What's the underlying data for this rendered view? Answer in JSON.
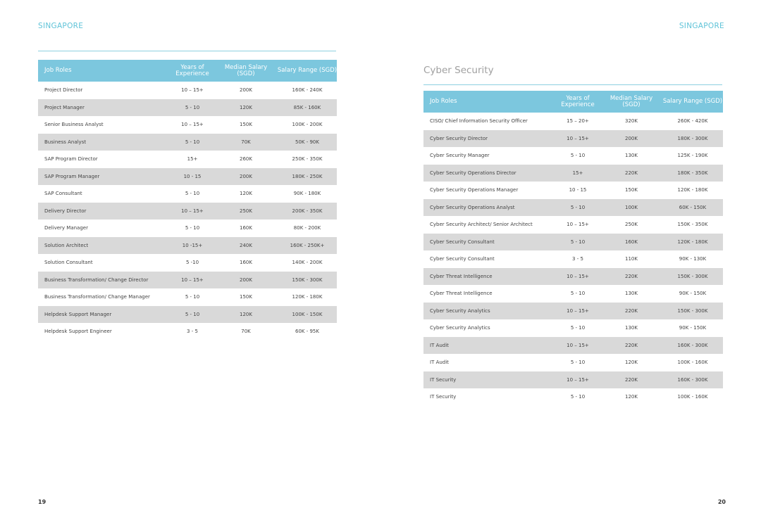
{
  "left_page": {
    "header": "SINGAPORE",
    "page_number": "19",
    "table": {
      "columns": [
        "Job Roles",
        "Years of Experience",
        "Median Salary (SGD)",
        "Salary Range (SGD)"
      ],
      "rows": [
        [
          "Project Director",
          "10 – 15+",
          "200K",
          "160K - 240K"
        ],
        [
          "Project Manager",
          "5 - 10",
          "120K",
          "85K - 160K"
        ],
        [
          "Senior Business Analyst",
          "10 – 15+",
          "150K",
          "100K - 200K"
        ],
        [
          "Business Analyst",
          "5 - 10",
          "70K",
          "50K - 90K"
        ],
        [
          "SAP Program Director",
          "15+",
          "260K",
          "250K - 350K"
        ],
        [
          "SAP Program Manager",
          "10 - 15",
          "200K",
          "180K - 250K"
        ],
        [
          "SAP Consultant",
          "5 - 10",
          "120K",
          "90K - 180K"
        ],
        [
          "Delivery Director",
          "10 – 15+",
          "250K",
          "200K - 350K"
        ],
        [
          "Delivery Manager",
          "5 - 10",
          "160K",
          "80K - 200K"
        ],
        [
          "Solution Architect",
          "10 -15+",
          "240K",
          "160K - 250K+"
        ],
        [
          "Solution Consultant",
          "5 -10",
          "160K",
          "140K - 200K"
        ],
        [
          "Business Transformation/ Change Director",
          "10 – 15+",
          "200K",
          "150K - 300K"
        ],
        [
          "Business Transformation/ Change Manager",
          "5 - 10",
          "150K",
          "120K - 180K"
        ],
        [
          "Helpdesk Support Manager",
          "5 - 10",
          "120K",
          "100K - 150K"
        ],
        [
          "Helpdesk Support Engineer",
          "3 - 5",
          "70K",
          "60K - 95K"
        ]
      ]
    }
  },
  "right_page": {
    "header": "SINGAPORE",
    "title": "Cyber Security",
    "page_number": "20",
    "table": {
      "columns": [
        "Job Roles",
        "Years of Experience",
        "Median Salary (SGD)",
        "Salary Range (SGD)"
      ],
      "rows": [
        [
          "CISO/ Chief Information Security Officer",
          "15 – 20+",
          "320K",
          "260K - 420K"
        ],
        [
          "Cyber Security Director",
          "10 – 15+",
          "200K",
          "180K - 300K"
        ],
        [
          "Cyber Security Manager",
          "5 - 10",
          "130K",
          "125K - 190K"
        ],
        [
          "Cyber Security Operations Director",
          "15+",
          "220K",
          "180K - 350K"
        ],
        [
          "Cyber Security Operations Manager",
          "10 - 15",
          "150K",
          "120K - 180K"
        ],
        [
          "Cyber Security Operations Analyst",
          "5 - 10",
          "100K",
          "60K - 150K"
        ],
        [
          "Cyber Security Architect/ Senior Architect",
          "10 – 15+",
          "250K",
          "150K - 350K"
        ],
        [
          "Cyber Security Consultant",
          "5 - 10",
          "160K",
          "120K - 180K"
        ],
        [
          "Cyber Security Consultant",
          "3 - 5",
          "110K",
          "90K - 130K"
        ],
        [
          "Cyber Threat Intelligence",
          "10 – 15+",
          "220K",
          "150K - 300K"
        ],
        [
          "Cyber Threat Intelligence",
          "5 - 10",
          "130K",
          "90K - 150K"
        ],
        [
          "Cyber Security Analytics",
          "10 – 15+",
          "220K",
          "150K - 300K"
        ],
        [
          "Cyber Security Analytics",
          "5 - 10",
          "130K",
          "90K - 150K"
        ],
        [
          "IT Audit",
          "10 – 15+",
          "220K",
          "160K - 300K"
        ],
        [
          "IT Audit",
          "5 - 10",
          "120K",
          "100K - 160K"
        ],
        [
          "IT Security",
          "10 – 15+",
          "220K",
          "160K - 300K"
        ],
        [
          "IT Security",
          "5 - 10",
          "120K",
          "100K - 160K"
        ]
      ]
    }
  }
}
